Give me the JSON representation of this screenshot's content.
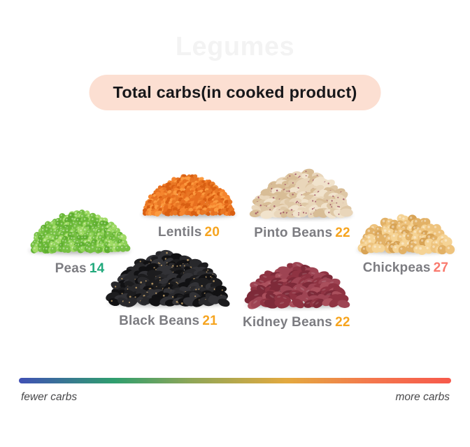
{
  "watermark": "Legumes",
  "title": {
    "text": "Total carbs(in cooked product)",
    "bg_color": "#fcdfd2"
  },
  "legumes": [
    {
      "name": "Peas",
      "value": "14",
      "value_color": "#21a97c",
      "shape": "circle",
      "size": 5.0,
      "highlight": true,
      "colors": [
        "#76c043",
        "#8ed157",
        "#5faf30",
        "#a0da66",
        "#69b836"
      ]
    },
    {
      "name": "Lentils",
      "value": "20",
      "value_color": "#f6a41f",
      "shape": "circle",
      "size": 3.6,
      "colors": [
        "#e86f1f",
        "#f5852e",
        "#d95f12",
        "#fb9a3f",
        "#e87724"
      ]
    },
    {
      "name": "Pinto Beans",
      "value": "22",
      "value_color": "#f6a41f",
      "shape": "ellipse",
      "size": 8.5,
      "speckle": "#9e4f63",
      "colors": [
        "#e9d6ba",
        "#dfc8a6",
        "#f1e3cc",
        "#d8bd96"
      ]
    },
    {
      "name": "Chickpeas",
      "value": "27",
      "value_color": "#f97a6e",
      "shape": "circle",
      "size": 7.0,
      "highlight": true,
      "colors": [
        "#eec37d",
        "#f5d395",
        "#e2b166",
        "#d8a355"
      ]
    },
    {
      "name": "Black Beans",
      "value": "21",
      "value_color": "#f6a41f",
      "shape": "ellipse",
      "size": 9.0,
      "speckle": "#c2a06a",
      "colors": [
        "#1c1c1e",
        "#111113",
        "#28282b",
        "#323236"
      ]
    },
    {
      "name": "Kidney Beans",
      "value": "22",
      "value_color": "#f6a41f",
      "shape": "ellipse",
      "size": 9.5,
      "sheen": true,
      "colors": [
        "#8f3342",
        "#9e4453",
        "#7e2a39",
        "#aa4f5c"
      ]
    }
  ],
  "scale": {
    "left_label": "fewer carbs",
    "right_label": "more carbs",
    "gradient": [
      "#4050b5 0%",
      "#2f9e6e 22%",
      "#8fa657 40%",
      "#e3a93f 62%",
      "#f4764d 82%",
      "#f6594b 100%"
    ]
  },
  "chart_data": {
    "type": "bar",
    "title": "Total carbs(in cooked product)",
    "categories": [
      "Peas",
      "Lentils",
      "Pinto Beans",
      "Chickpeas",
      "Black Beans",
      "Kidney Beans"
    ],
    "values": [
      14,
      20,
      22,
      27,
      21,
      22
    ],
    "xlabel": "",
    "ylabel": "",
    "legend": [
      "fewer carbs",
      "more carbs"
    ],
    "annotations": [
      "values shown next to each legume pile; color scale from fewer (blue/green) to more (red) carbs"
    ]
  }
}
